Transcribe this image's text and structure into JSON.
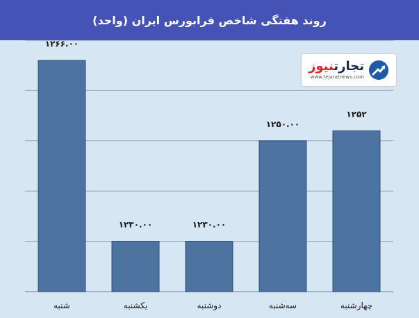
{
  "header": {
    "title": "روند هفتگی شاخص فرابورس ایران (واحد)"
  },
  "logo": {
    "name_part1": "تجارت",
    "name_part2": "نیوز",
    "url": "www.tejaratnews.com"
  },
  "colors": {
    "header_bg": "#4552b6",
    "plot_bg": "#d7e6f3",
    "bar_fill": "#4d74a0",
    "bar_stroke": "#2e4d73",
    "gridline": "#8ea3b6"
  },
  "chart_data": {
    "type": "bar",
    "title": "روند هفتگی شاخص فرابورس ایران (واحد)",
    "categories": [
      "شنبه",
      "یکشنبه",
      "دوشنبه",
      "سه‌شنبه",
      "چهارشنبه"
    ],
    "values": [
      1266,
      1230,
      1230,
      1250,
      1252
    ],
    "value_labels": [
      "۱۲۶۶.۰۰",
      "۱۲۳۰.۰۰",
      "۱۲۳۰.۰۰",
      "۱۲۵۰.۰۰",
      "۱۲۵۲"
    ],
    "xlabel": "",
    "ylabel": "",
    "ylim": [
      1220,
      1270
    ],
    "grid": true,
    "legend": "none"
  }
}
